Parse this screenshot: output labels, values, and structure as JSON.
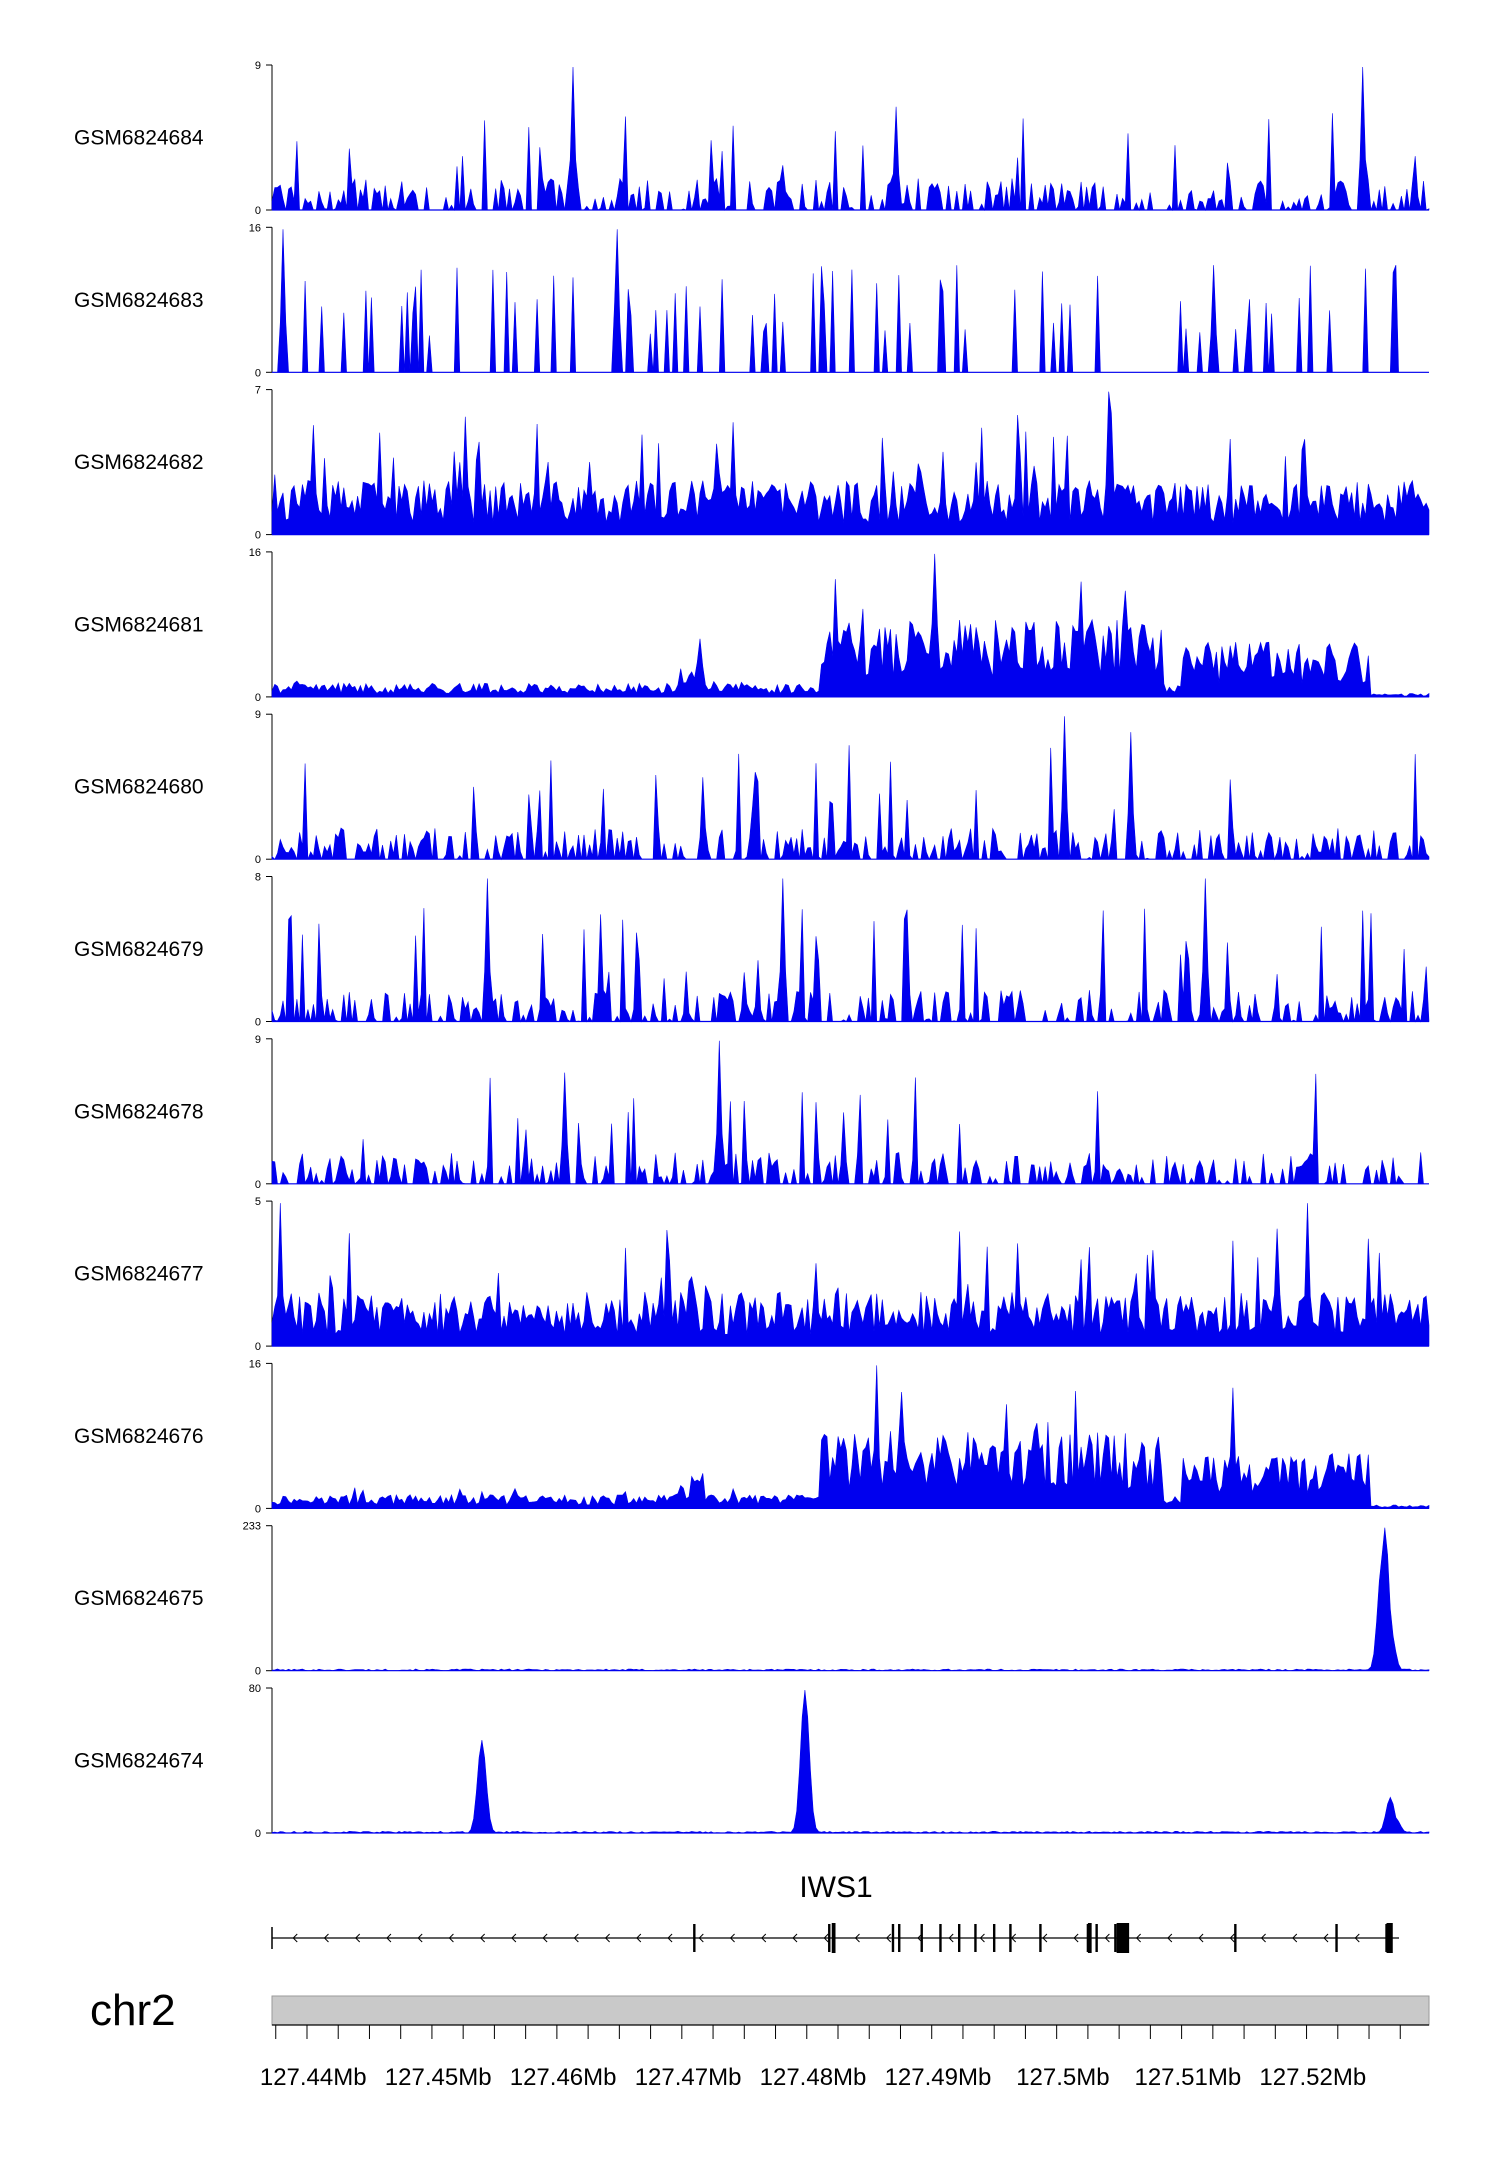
{
  "chart_data": {
    "type": "area",
    "title": "",
    "colors": {
      "signal": "#0000ee",
      "axis": "#000000",
      "chrom_bar": "#c9c9c9",
      "gene": "#000000"
    },
    "tracks": [
      {
        "name": "GSM6824684",
        "ymax": 9,
        "ymin": 0,
        "tick_labels": [
          "9",
          "0"
        ],
        "seed": 11,
        "profile": "sparse_uniform",
        "peaks": [
          [
            127.4607,
            9
          ],
          [
            127.5239,
            9
          ],
          [
            127.4867,
            6.5
          ]
        ]
      },
      {
        "name": "GSM6824683",
        "ymax": 16,
        "ymin": 0,
        "tick_labels": [
          "16",
          "0"
        ],
        "seed": 23,
        "profile": "spiky_sparse",
        "peaks": [
          [
            127.4376,
            16
          ],
          [
            127.4643,
            16
          ],
          [
            127.512,
            12
          ]
        ]
      },
      {
        "name": "GSM6824682",
        "ymax": 7,
        "ymin": 0,
        "tick_labels": [
          "7",
          "0"
        ],
        "seed": 37,
        "profile": "dense_uniform",
        "peaks": [
          [
            127.5036,
            7
          ],
          [
            127.4735,
            5.5
          ]
        ]
      },
      {
        "name": "GSM6824681",
        "ymax": 16,
        "ymin": 0,
        "tick_labels": [
          "16",
          "0"
        ],
        "seed": 41,
        "profile": "domain",
        "peaks": [
          [
            127.4898,
            16
          ],
          [
            127.4709,
            6.5
          ]
        ]
      },
      {
        "name": "GSM6824680",
        "ymax": 9,
        "ymin": 0,
        "tick_labels": [
          "9",
          "0"
        ],
        "seed": 53,
        "profile": "sparse_uniform",
        "peaks": [
          [
            127.5002,
            9
          ],
          [
            127.5054,
            8
          ]
        ]
      },
      {
        "name": "GSM6824679",
        "ymax": 8,
        "ymin": 0,
        "tick_labels": [
          "8",
          "0"
        ],
        "seed": 67,
        "profile": "sparse_uniform",
        "peaks": [
          [
            127.4539,
            8
          ],
          [
            127.4776,
            8
          ],
          [
            127.5113,
            8
          ]
        ]
      },
      {
        "name": "GSM6824678",
        "ymax": 9,
        "ymin": 0,
        "tick_labels": [
          "9",
          "0"
        ],
        "seed": 71,
        "profile": "sparse_uniform",
        "peaks": [
          [
            127.4725,
            9
          ],
          [
            127.4601,
            7
          ]
        ]
      },
      {
        "name": "GSM6824677",
        "ymax": 5,
        "ymin": 0,
        "tick_labels": [
          "5",
          "0"
        ],
        "seed": 83,
        "profile": "dense_uniform",
        "peaks": [
          [
            127.4373,
            5
          ],
          [
            127.5195,
            5
          ]
        ]
      },
      {
        "name": "GSM6824676",
        "ymax": 16,
        "ymin": 0,
        "tick_labels": [
          "16",
          "0"
        ],
        "seed": 97,
        "profile": "domain",
        "peaks": [
          [
            127.4852,
            16
          ],
          [
            127.5135,
            13.5
          ]
        ]
      },
      {
        "name": "GSM6824675",
        "ymax": 233,
        "ymin": 0,
        "tick_labels": [
          "233",
          "0"
        ],
        "seed": 101,
        "profile": "flat",
        "peaks": [
          [
            127.5257,
            233
          ],
          [
            127.5255,
            180
          ],
          [
            127.5262,
            70
          ]
        ]
      },
      {
        "name": "GSM6824674",
        "ymax": 80,
        "ymin": 0,
        "tick_labels": [
          "80",
          "0"
        ],
        "seed": 113,
        "profile": "flat",
        "peaks": [
          [
            127.4536,
            52
          ],
          [
            127.4794,
            80
          ],
          [
            127.5261,
            20
          ],
          [
            127.5266,
            8
          ]
        ]
      }
    ],
    "gene": {
      "name": "IWS1",
      "start": 127.4367,
      "end": 127.5269,
      "strand": "-",
      "exons": [
        127.4705,
        127.4813,
        127.4864,
        127.4869,
        127.4887,
        127.4902,
        127.4917,
        127.493,
        127.4945,
        127.4958,
        127.4982,
        127.502,
        127.5027,
        127.5042,
        127.5138,
        127.5219,
        127.5259,
        127.5262
      ],
      "thick_exons": [
        [
          127.4815,
          127.4818
        ],
        [
          127.502,
          127.5023
        ],
        [
          127.5043,
          127.5053
        ],
        [
          127.5259,
          127.5264
        ]
      ]
    },
    "chromosome": {
      "label": "chr2"
    },
    "x_axis": {
      "xlim": [
        127.4367,
        127.5293
      ],
      "major_ticks": [
        127.44,
        127.45,
        127.46,
        127.47,
        127.48,
        127.49,
        127.5,
        127.51,
        127.52
      ],
      "tick_labels": [
        "127.44Mb",
        "127.45Mb",
        "127.46Mb",
        "127.47Mb",
        "127.48Mb",
        "127.49Mb",
        "127.5Mb",
        "127.51Mb",
        "127.52Mb"
      ]
    }
  }
}
